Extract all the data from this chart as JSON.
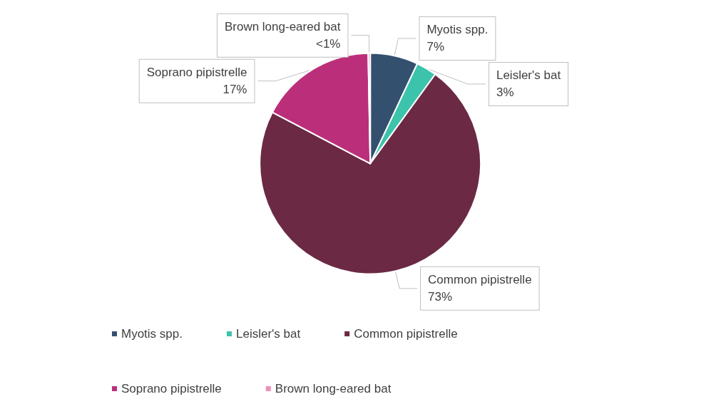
{
  "chart_data": {
    "type": "pie",
    "categories": [
      "Myotis spp.",
      "Leisler's bat",
      "Common pipistrelle",
      "Soprano pipistrelle",
      "Brown long-eared bat"
    ],
    "values": [
      7,
      3,
      72.7,
      17,
      0.3
    ],
    "value_labels": [
      "7%",
      "3%",
      "73%",
      "17%",
      "<1%"
    ],
    "colors": [
      "#34506f",
      "#3cc3ab",
      "#6b2944",
      "#bb2f7a",
      "#f090b8"
    ],
    "legend": "bottom"
  }
}
